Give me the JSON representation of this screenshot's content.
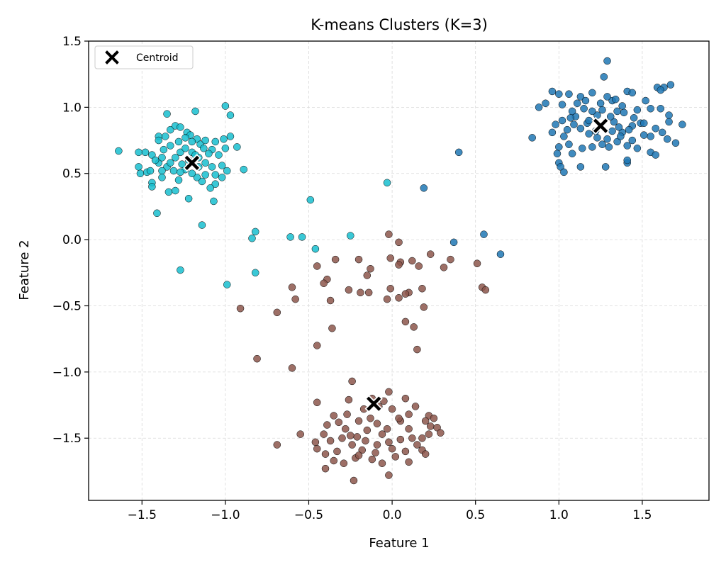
{
  "chart_data": {
    "type": "scatter",
    "title": "K-means Clusters (K=3)",
    "xlabel": "Feature 1",
    "ylabel": "Feature 2",
    "xlim": [
      -1.82,
      1.9
    ],
    "ylim": [
      -1.97,
      1.5
    ],
    "xticks": [
      -1.5,
      -1.0,
      -0.5,
      0.0,
      0.5,
      1.0,
      1.5
    ],
    "xtick_labels": [
      "−1.5",
      "−1.0",
      "−0.5",
      "0.0",
      "0.5",
      "1.0",
      "1.5"
    ],
    "yticks": [
      1.5,
      1.0,
      0.5,
      0.0,
      -0.5,
      -1.0,
      -1.5
    ],
    "ytick_labels": [
      "1.5",
      "1.0",
      "0.5",
      "0.0",
      "−0.5",
      "−1.0",
      "−1.5"
    ],
    "grid": true,
    "legend": {
      "position": "top-left",
      "entries": [
        "Centroid"
      ]
    },
    "colors": {
      "cluster_0": "#1f77b4",
      "cluster_1": "#17becf",
      "cluster_2": "#8c564b",
      "centroid": "#000000"
    },
    "clusters": [
      {
        "id": 0,
        "color": "#1f77b4",
        "centroid": [
          1.25,
          0.86
        ],
        "points": [
          [
            1.29,
            1.35
          ],
          [
            1.27,
            1.23
          ],
          [
            1.2,
            1.11
          ],
          [
            1.63,
            1.15
          ],
          [
            1.67,
            1.17
          ],
          [
            1.59,
            1.15
          ],
          [
            1.61,
            1.13
          ],
          [
            1.06,
            1.1
          ],
          [
            1.0,
            1.1
          ],
          [
            0.96,
            1.12
          ],
          [
            0.92,
            1.03
          ],
          [
            0.88,
            1.0
          ],
          [
            1.02,
            1.02
          ],
          [
            1.13,
            1.08
          ],
          [
            1.11,
            1.03
          ],
          [
            1.16,
            1.05
          ],
          [
            1.32,
            1.05
          ],
          [
            1.34,
            1.06
          ],
          [
            1.29,
            1.08
          ],
          [
            1.41,
            1.12
          ],
          [
            1.44,
            1.11
          ],
          [
            1.38,
            1.01
          ],
          [
            1.39,
            0.96
          ],
          [
            1.47,
            0.98
          ],
          [
            1.52,
            1.05
          ],
          [
            1.55,
            0.99
          ],
          [
            1.61,
            0.99
          ],
          [
            1.66,
            0.94
          ],
          [
            1.66,
            0.89
          ],
          [
            1.74,
            0.87
          ],
          [
            1.58,
            0.84
          ],
          [
            1.62,
            0.81
          ],
          [
            1.55,
            0.78
          ],
          [
            1.51,
            0.79
          ],
          [
            1.49,
            0.88
          ],
          [
            1.44,
            0.86
          ],
          [
            1.42,
            0.83
          ],
          [
            1.38,
            0.81
          ],
          [
            1.36,
            0.85
          ],
          [
            1.33,
            0.89
          ],
          [
            1.31,
            0.93
          ],
          [
            1.23,
            0.94
          ],
          [
            1.2,
            0.97
          ],
          [
            1.15,
            0.99
          ],
          [
            1.1,
            0.93
          ],
          [
            1.07,
            0.92
          ],
          [
            1.02,
            0.9
          ],
          [
            0.98,
            0.87
          ],
          [
            0.96,
            0.81
          ],
          [
            1.05,
            0.83
          ],
          [
            1.09,
            0.87
          ],
          [
            1.13,
            0.84
          ],
          [
            1.18,
            0.8
          ],
          [
            1.23,
            0.77
          ],
          [
            1.29,
            0.76
          ],
          [
            1.35,
            0.74
          ],
          [
            1.41,
            0.71
          ],
          [
            1.44,
            0.75
          ],
          [
            1.47,
            0.69
          ],
          [
            1.55,
            0.66
          ],
          [
            1.58,
            0.64
          ],
          [
            1.65,
            0.76
          ],
          [
            1.7,
            0.73
          ],
          [
            1.51,
            0.88
          ],
          [
            1.45,
            0.92
          ],
          [
            1.3,
            0.7
          ],
          [
            1.26,
            0.72
          ],
          [
            1.2,
            0.7
          ],
          [
            1.14,
            0.69
          ],
          [
            1.08,
            0.65
          ],
          [
            1.06,
            0.72
          ],
          [
            1.03,
            0.78
          ],
          [
            1.0,
            0.7
          ],
          [
            0.99,
            0.65
          ],
          [
            1.0,
            0.58
          ],
          [
            1.01,
            0.55
          ],
          [
            1.03,
            0.51
          ],
          [
            0.84,
            0.77
          ],
          [
            1.13,
            0.55
          ],
          [
            1.28,
            0.55
          ],
          [
            1.41,
            0.58
          ],
          [
            1.41,
            0.6
          ],
          [
            1.17,
            0.88
          ],
          [
            1.22,
            0.82
          ],
          [
            1.32,
            0.82
          ],
          [
            1.37,
            0.78
          ],
          [
            1.26,
            0.98
          ],
          [
            1.18,
            0.9
          ],
          [
            1.08,
            0.97
          ],
          [
            1.25,
            1.03
          ],
          [
            1.35,
            0.97
          ],
          [
            0.4,
            0.66
          ],
          [
            0.19,
            0.39
          ],
          [
            0.37,
            -0.02
          ],
          [
            0.55,
            0.04
          ],
          [
            0.65,
            -0.11
          ]
        ]
      },
      {
        "id": 1,
        "color": "#17becf",
        "centroid": [
          -1.2,
          0.58
        ],
        "points": [
          [
            -1.18,
            0.97
          ],
          [
            -1.35,
            0.95
          ],
          [
            -1.0,
            1.01
          ],
          [
            -0.97,
            0.94
          ],
          [
            -1.64,
            0.67
          ],
          [
            -1.52,
            0.66
          ],
          [
            -1.48,
            0.66
          ],
          [
            -1.44,
            0.64
          ],
          [
            -1.52,
            0.55
          ],
          [
            -1.51,
            0.5
          ],
          [
            -1.47,
            0.51
          ],
          [
            -1.45,
            0.52
          ],
          [
            -1.44,
            0.43
          ],
          [
            -1.44,
            0.4
          ],
          [
            -1.4,
            0.58
          ],
          [
            -1.38,
            0.62
          ],
          [
            -1.4,
            0.78
          ],
          [
            -1.4,
            0.75
          ],
          [
            -1.36,
            0.78
          ],
          [
            -1.33,
            0.83
          ],
          [
            -1.3,
            0.86
          ],
          [
            -1.27,
            0.85
          ],
          [
            -1.23,
            0.81
          ],
          [
            -1.21,
            0.79
          ],
          [
            -1.17,
            0.76
          ],
          [
            -1.15,
            0.72
          ],
          [
            -1.12,
            0.75
          ],
          [
            -1.08,
            0.68
          ],
          [
            -1.06,
            0.74
          ],
          [
            -1.01,
            0.76
          ],
          [
            -0.97,
            0.78
          ],
          [
            -1.0,
            0.69
          ],
          [
            -1.04,
            0.64
          ],
          [
            -1.02,
            0.56
          ],
          [
            -0.99,
            0.52
          ],
          [
            -1.02,
            0.47
          ],
          [
            -1.06,
            0.42
          ],
          [
            -1.09,
            0.39
          ],
          [
            -1.14,
            0.44
          ],
          [
            -1.17,
            0.47
          ],
          [
            -1.2,
            0.5
          ],
          [
            -1.24,
            0.53
          ],
          [
            -1.27,
            0.51
          ],
          [
            -1.31,
            0.52
          ],
          [
            -1.35,
            0.55
          ],
          [
            -1.38,
            0.52
          ],
          [
            -1.3,
            0.62
          ],
          [
            -1.27,
            0.66
          ],
          [
            -1.24,
            0.69
          ],
          [
            -1.2,
            0.66
          ],
          [
            -1.16,
            0.62
          ],
          [
            -1.12,
            0.58
          ],
          [
            -1.08,
            0.55
          ],
          [
            -1.06,
            0.49
          ],
          [
            -1.12,
            0.49
          ],
          [
            -1.16,
            0.55
          ],
          [
            -1.3,
            0.37
          ],
          [
            -1.34,
            0.36
          ],
          [
            -1.28,
            0.45
          ],
          [
            -1.37,
            0.68
          ],
          [
            -1.33,
            0.71
          ],
          [
            -1.28,
            0.74
          ],
          [
            -1.24,
            0.77
          ],
          [
            -1.2,
            0.74
          ],
          [
            -1.1,
            0.65
          ],
          [
            -1.13,
            0.69
          ],
          [
            -0.93,
            0.7
          ],
          [
            -0.89,
            0.53
          ],
          [
            -1.22,
            0.31
          ],
          [
            -1.07,
            0.29
          ],
          [
            -1.41,
            0.2
          ],
          [
            -1.14,
            0.11
          ],
          [
            -1.26,
            0.57
          ],
          [
            -1.33,
            0.58
          ],
          [
            -1.22,
            0.6
          ],
          [
            -1.18,
            0.64
          ],
          [
            -1.38,
            0.47
          ],
          [
            -1.42,
            0.6
          ],
          [
            -0.49,
            0.3
          ],
          [
            -0.03,
            0.43
          ],
          [
            -0.82,
            0.06
          ],
          [
            -0.84,
            0.01
          ],
          [
            -0.61,
            0.02
          ],
          [
            -0.54,
            0.02
          ],
          [
            -0.46,
            -0.07
          ],
          [
            -0.25,
            0.03
          ],
          [
            -1.27,
            -0.23
          ],
          [
            -0.82,
            -0.25
          ],
          [
            -0.99,
            -0.34
          ]
        ]
      },
      {
        "id": 2,
        "color": "#8c564b",
        "centroid": [
          -0.11,
          -1.24
        ],
        "points": [
          [
            -0.02,
            0.04
          ],
          [
            0.04,
            -0.02
          ],
          [
            -0.45,
            -0.2
          ],
          [
            -0.34,
            -0.15
          ],
          [
            -0.2,
            -0.15
          ],
          [
            -0.39,
            -0.3
          ],
          [
            -0.41,
            -0.33
          ],
          [
            -0.15,
            -0.27
          ],
          [
            -0.13,
            -0.22
          ],
          [
            -0.01,
            -0.14
          ],
          [
            0.05,
            -0.17
          ],
          [
            0.04,
            -0.19
          ],
          [
            0.12,
            -0.16
          ],
          [
            0.16,
            -0.2
          ],
          [
            0.23,
            -0.11
          ],
          [
            0.35,
            -0.15
          ],
          [
            0.31,
            -0.21
          ],
          [
            0.51,
            -0.18
          ],
          [
            0.54,
            -0.36
          ],
          [
            0.56,
            -0.38
          ],
          [
            0.18,
            -0.37
          ],
          [
            0.1,
            -0.4
          ],
          [
            0.08,
            -0.41
          ],
          [
            0.04,
            -0.44
          ],
          [
            -0.01,
            -0.37
          ],
          [
            -0.03,
            -0.45
          ],
          [
            -0.19,
            -0.4
          ],
          [
            -0.14,
            -0.4
          ],
          [
            -0.26,
            -0.38
          ],
          [
            -0.37,
            -0.46
          ],
          [
            -0.6,
            -0.36
          ],
          [
            -0.58,
            -0.45
          ],
          [
            -0.69,
            -0.55
          ],
          [
            -0.91,
            -0.52
          ],
          [
            -0.36,
            -0.67
          ],
          [
            0.08,
            -0.62
          ],
          [
            0.13,
            -0.66
          ],
          [
            0.19,
            -0.51
          ],
          [
            -0.45,
            -0.8
          ],
          [
            -0.81,
            -0.9
          ],
          [
            -0.6,
            -0.97
          ],
          [
            0.15,
            -0.83
          ],
          [
            -0.24,
            -1.07
          ],
          [
            -0.45,
            -1.23
          ],
          [
            -0.12,
            -1.2
          ],
          [
            -0.02,
            -1.15
          ],
          [
            0.08,
            -1.2
          ],
          [
            0.14,
            -1.26
          ],
          [
            0.22,
            -1.33
          ],
          [
            0.2,
            -1.37
          ],
          [
            0.25,
            -1.35
          ],
          [
            0.23,
            -1.41
          ],
          [
            0.1,
            -1.32
          ],
          [
            0.0,
            -1.28
          ],
          [
            -0.08,
            -1.26
          ],
          [
            -0.17,
            -1.28
          ],
          [
            -0.26,
            -1.21
          ],
          [
            -0.27,
            -1.32
          ],
          [
            -0.35,
            -1.33
          ],
          [
            -0.39,
            -1.4
          ],
          [
            -0.41,
            -1.47
          ],
          [
            -0.46,
            -1.53
          ],
          [
            -0.45,
            -1.58
          ],
          [
            -0.4,
            -1.62
          ],
          [
            -0.33,
            -1.6
          ],
          [
            -0.29,
            -1.69
          ],
          [
            -0.22,
            -1.65
          ],
          [
            -0.18,
            -1.59
          ],
          [
            -0.12,
            -1.66
          ],
          [
            -0.06,
            -1.69
          ],
          [
            0.02,
            -1.64
          ],
          [
            0.08,
            -1.6
          ],
          [
            0.15,
            -1.55
          ],
          [
            0.18,
            -1.5
          ],
          [
            0.22,
            -1.47
          ],
          [
            -0.03,
            -1.43
          ],
          [
            -0.09,
            -1.39
          ],
          [
            -0.15,
            -1.44
          ],
          [
            -0.21,
            -1.49
          ],
          [
            -0.28,
            -1.43
          ],
          [
            -0.32,
            -1.38
          ],
          [
            0.05,
            -1.37
          ],
          [
            0.1,
            -1.43
          ],
          [
            0.12,
            -1.5
          ],
          [
            0.05,
            -1.51
          ],
          [
            -0.02,
            -1.53
          ],
          [
            -0.09,
            -1.55
          ],
          [
            -0.16,
            -1.52
          ],
          [
            -0.24,
            -1.55
          ],
          [
            -0.3,
            -1.5
          ],
          [
            -0.37,
            -1.52
          ],
          [
            -0.55,
            -1.47
          ],
          [
            -0.69,
            -1.55
          ],
          [
            -0.4,
            -1.73
          ],
          [
            -0.35,
            -1.67
          ],
          [
            -0.23,
            -1.82
          ],
          [
            -0.02,
            -1.78
          ],
          [
            0.1,
            -1.68
          ],
          [
            0.18,
            -1.59
          ],
          [
            0.2,
            -1.62
          ],
          [
            0.27,
            -1.42
          ],
          [
            0.29,
            -1.46
          ],
          [
            -0.05,
            -1.22
          ],
          [
            0.04,
            -1.35
          ],
          [
            -0.13,
            -1.35
          ],
          [
            -0.2,
            -1.37
          ],
          [
            -0.25,
            -1.48
          ],
          [
            -0.06,
            -1.47
          ],
          [
            0.0,
            -1.58
          ],
          [
            -0.1,
            -1.61
          ],
          [
            -0.2,
            -1.63
          ]
        ]
      }
    ]
  }
}
